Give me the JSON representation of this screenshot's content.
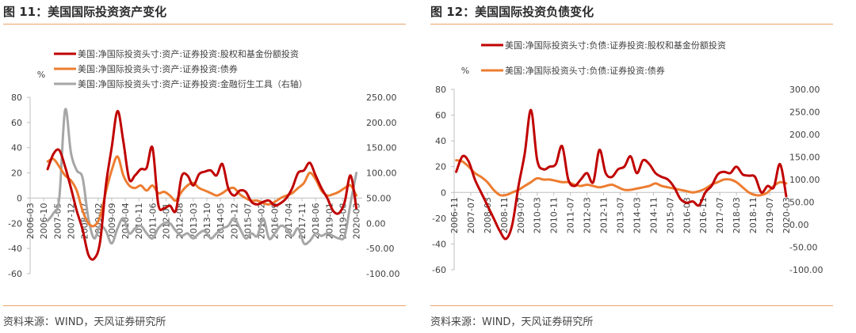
{
  "figures": [
    {
      "title": "图 11：美国国际投资资产变化",
      "source": "资料来源：WIND，天风证券研究所"
    },
    {
      "title": "图 12：美国国际投资负债变化",
      "source": "资料来源：WIND，天风证券研究所"
    }
  ],
  "chart_data": [
    {
      "type": "line",
      "title": "",
      "left_axis_unit": "%",
      "ylim": [
        -60,
        80
      ],
      "y_ticks": [
        "80",
        "60",
        "40",
        "20",
        "0",
        "-20",
        "-40",
        "-60"
      ],
      "y2lim": [
        -100,
        250
      ],
      "y2_ticks": [
        "250.00",
        "200.00",
        "150.00",
        "100.00",
        "50.00",
        "0.00",
        "-50.00",
        "-100.00"
      ],
      "x_range": [
        "2006-03",
        "2020-06"
      ],
      "x_ticks": [
        "2006-03",
        "2006-10",
        "2007-05",
        "2007-12",
        "2008-07",
        "2009-02",
        "2009-09",
        "2010-04",
        "2010-11",
        "2011-06",
        "2012-01",
        "2012-08",
        "2013-03",
        "2013-10",
        "2014-05",
        "2014-12",
        "2015-07",
        "2016-02",
        "2016-09",
        "2017-04",
        "2017-11",
        "2018-06",
        "2019-01",
        "2019-08",
        "2020-03"
      ],
      "legend_position": "top",
      "grid": false,
      "series": [
        {
          "name": "美国:净国际投资头寸:资产:证券投资:股权和基金份额投资",
          "axis": "left",
          "color": "#c00000",
          "x": [
            "2006-12",
            "2007-03",
            "2007-06",
            "2007-09",
            "2007-12",
            "2008-03",
            "2008-06",
            "2008-09",
            "2008-12",
            "2009-03",
            "2009-06",
            "2009-09",
            "2009-12",
            "2010-03",
            "2010-06",
            "2010-09",
            "2010-12",
            "2011-03",
            "2011-06",
            "2011-09",
            "2011-12",
            "2012-03",
            "2012-06",
            "2012-09",
            "2012-12",
            "2013-03",
            "2013-06",
            "2013-09",
            "2013-12",
            "2014-03",
            "2014-06",
            "2014-09",
            "2014-12",
            "2015-03",
            "2015-06",
            "2015-09",
            "2015-12",
            "2016-03",
            "2016-06",
            "2016-09",
            "2016-12",
            "2017-03",
            "2017-06",
            "2017-09",
            "2017-12",
            "2018-03",
            "2018-06",
            "2018-09",
            "2018-12",
            "2019-03",
            "2019-06",
            "2019-09",
            "2019-12",
            "2020-03"
          ],
          "values": [
            23,
            35,
            38,
            25,
            8,
            -10,
            -25,
            -45,
            -48,
            -35,
            10,
            40,
            69,
            45,
            15,
            18,
            23,
            24,
            40,
            -5,
            -8,
            -6,
            -10,
            17,
            18,
            10,
            19,
            21,
            22,
            18,
            27,
            8,
            2,
            6,
            5,
            -3,
            -5,
            -3,
            -2,
            -6,
            -4,
            0,
            8,
            20,
            22,
            28,
            18,
            8,
            0,
            -10,
            -12,
            -3,
            18,
            -8
          ]
        },
        {
          "name": "美国:净国际投资头寸:资产:证券投资:债券",
          "axis": "left",
          "color": "#ed7d31",
          "x": [
            "2006-12",
            "2007-03",
            "2007-06",
            "2007-09",
            "2007-12",
            "2008-03",
            "2008-06",
            "2008-09",
            "2008-12",
            "2009-03",
            "2009-06",
            "2009-09",
            "2009-12",
            "2010-03",
            "2010-06",
            "2010-09",
            "2010-12",
            "2011-03",
            "2011-06",
            "2011-09",
            "2011-12",
            "2012-03",
            "2012-06",
            "2012-09",
            "2012-12",
            "2013-03",
            "2013-06",
            "2013-09",
            "2013-12",
            "2014-03",
            "2014-06",
            "2014-09",
            "2014-12",
            "2015-03",
            "2015-06",
            "2015-09",
            "2015-12",
            "2016-03",
            "2016-06",
            "2016-09",
            "2016-12",
            "2017-03",
            "2017-06",
            "2017-09",
            "2017-12",
            "2018-03",
            "2018-06",
            "2018-09",
            "2018-12",
            "2019-03",
            "2019-06",
            "2019-09",
            "2019-12",
            "2020-03"
          ],
          "values": [
            29,
            31,
            25,
            18,
            14,
            6,
            -10,
            -20,
            -22,
            -15,
            5,
            22,
            33,
            18,
            10,
            8,
            10,
            6,
            10,
            4,
            5,
            2,
            -2,
            5,
            10,
            12,
            8,
            6,
            4,
            2,
            4,
            7,
            8,
            3,
            0,
            -2,
            -2,
            -4,
            -5,
            -3,
            0,
            2,
            4,
            8,
            12,
            20,
            15,
            6,
            2,
            3,
            5,
            8,
            10,
            2
          ]
        },
        {
          "name": "美国:净国际投资头寸:资产:证券投资:金融衍生工具（右轴）",
          "axis": "right",
          "color": "#a6a6a6",
          "x": [
            "2006-12",
            "2007-03",
            "2007-06",
            "2007-09",
            "2007-12",
            "2008-03",
            "2008-06",
            "2008-09",
            "2008-12",
            "2009-03",
            "2009-06",
            "2009-09",
            "2009-12",
            "2010-03",
            "2010-06",
            "2010-09",
            "2010-12",
            "2011-03",
            "2011-06",
            "2011-09",
            "2011-12",
            "2012-03",
            "2012-06",
            "2012-09",
            "2012-12",
            "2013-03",
            "2013-06",
            "2013-09",
            "2013-12",
            "2014-03",
            "2014-06",
            "2014-09",
            "2014-12",
            "2015-03",
            "2015-06",
            "2015-09",
            "2015-12",
            "2016-03",
            "2016-06",
            "2016-09",
            "2016-12",
            "2017-03",
            "2017-06",
            "2017-09",
            "2017-12",
            "2018-03",
            "2018-06",
            "2018-09",
            "2018-12",
            "2019-03",
            "2019-06",
            "2019-09",
            "2019-12",
            "2020-03"
          ],
          "values": [
            5,
            20,
            50,
            225,
            140,
            105,
            90,
            10,
            -30,
            -5,
            -15,
            -40,
            -10,
            10,
            -20,
            -10,
            -5,
            -20,
            -30,
            -10,
            0,
            0,
            -15,
            -25,
            -20,
            -30,
            -20,
            -15,
            -30,
            -20,
            -10,
            -5,
            10,
            -10,
            -30,
            -20,
            -25,
            10,
            -30,
            -20,
            -5,
            -10,
            -25,
            -10,
            -40,
            -35,
            -20,
            -25,
            -20,
            -25,
            -30,
            -25,
            40,
            100
          ]
        }
      ]
    },
    {
      "type": "line",
      "title": "",
      "left_axis_unit": "%",
      "ylim": [
        -60,
        80
      ],
      "y_ticks": [
        "80",
        "60",
        "40",
        "20",
        "0",
        "-20",
        "-40",
        "-60"
      ],
      "y2lim": [
        -100,
        300
      ],
      "y2_ticks": [
        "300.00",
        "250.00",
        "200.00",
        "150.00",
        "100.00",
        "50.00",
        "0.00",
        "-50.00",
        "-100.00"
      ],
      "x_range": [
        "2006-11",
        "2020-03"
      ],
      "x_ticks": [
        "2006-11",
        "2007-07",
        "2008-03",
        "2008-11",
        "2009-07",
        "2010-03",
        "2010-11",
        "2011-07",
        "2012-03",
        "2012-11",
        "2013-07",
        "2014-03",
        "2014-11",
        "2015-07",
        "2016-03",
        "2016-11",
        "2017-07",
        "2018-03",
        "2018-11",
        "2019-07",
        "2020-03"
      ],
      "legend_position": "top",
      "grid": false,
      "series": [
        {
          "name": "美国:净国际投资头寸:负债:证券投资:股权和基金份额投资",
          "axis": "left",
          "color": "#c00000",
          "x": [
            "2006-12",
            "2007-03",
            "2007-06",
            "2007-09",
            "2007-12",
            "2008-03",
            "2008-06",
            "2008-09",
            "2008-12",
            "2009-03",
            "2009-06",
            "2009-09",
            "2009-12",
            "2010-03",
            "2010-06",
            "2010-09",
            "2010-12",
            "2011-03",
            "2011-06",
            "2011-09",
            "2011-12",
            "2012-03",
            "2012-06",
            "2012-09",
            "2012-12",
            "2013-03",
            "2013-06",
            "2013-09",
            "2013-12",
            "2014-03",
            "2014-06",
            "2014-09",
            "2014-12",
            "2015-03",
            "2015-06",
            "2015-09",
            "2015-12",
            "2016-03",
            "2016-06",
            "2016-09",
            "2016-12",
            "2017-03",
            "2017-06",
            "2017-09",
            "2017-12",
            "2018-03",
            "2018-06",
            "2018-09",
            "2018-12",
            "2019-03",
            "2019-06",
            "2019-09",
            "2019-12",
            "2020-03"
          ],
          "values": [
            16,
            28,
            24,
            10,
            0,
            -10,
            -20,
            -30,
            -36,
            -25,
            5,
            30,
            64,
            25,
            18,
            20,
            22,
            36,
            10,
            5,
            10,
            15,
            8,
            33,
            15,
            12,
            18,
            20,
            28,
            15,
            25,
            22,
            15,
            12,
            10,
            4,
            -5,
            -8,
            -7,
            -10,
            0,
            5,
            14,
            16,
            15,
            20,
            14,
            13,
            12,
            0,
            5,
            4,
            22,
            -3
          ]
        },
        {
          "name": "美国:净国际投资头寸:负债:证券投资:债券",
          "axis": "left",
          "color": "#ed7d31",
          "x": [
            "2006-12",
            "2007-03",
            "2007-06",
            "2007-09",
            "2007-12",
            "2008-03",
            "2008-06",
            "2008-09",
            "2008-12",
            "2009-03",
            "2009-06",
            "2009-09",
            "2009-12",
            "2010-03",
            "2010-06",
            "2010-09",
            "2010-12",
            "2011-03",
            "2011-06",
            "2011-09",
            "2011-12",
            "2012-03",
            "2012-06",
            "2012-09",
            "2012-12",
            "2013-03",
            "2013-06",
            "2013-09",
            "2013-12",
            "2014-03",
            "2014-06",
            "2014-09",
            "2014-12",
            "2015-03",
            "2015-06",
            "2015-09",
            "2015-12",
            "2016-03",
            "2016-06",
            "2016-09",
            "2016-12",
            "2017-03",
            "2017-06",
            "2017-09",
            "2017-12",
            "2018-03",
            "2018-06",
            "2018-09",
            "2018-12",
            "2019-03",
            "2019-06",
            "2019-09",
            "2019-12",
            "2020-03"
          ],
          "values": [
            25,
            24,
            20,
            15,
            12,
            8,
            2,
            -2,
            -2,
            0,
            2,
            5,
            8,
            11,
            10,
            10,
            9,
            8,
            8,
            6,
            5,
            6,
            5,
            4,
            5,
            6,
            4,
            2,
            2,
            3,
            4,
            5,
            7,
            5,
            4,
            3,
            2,
            1,
            0,
            1,
            3,
            6,
            8,
            10,
            10,
            8,
            4,
            0,
            -2,
            -2,
            0,
            5,
            8,
            7
          ]
        }
      ]
    }
  ]
}
